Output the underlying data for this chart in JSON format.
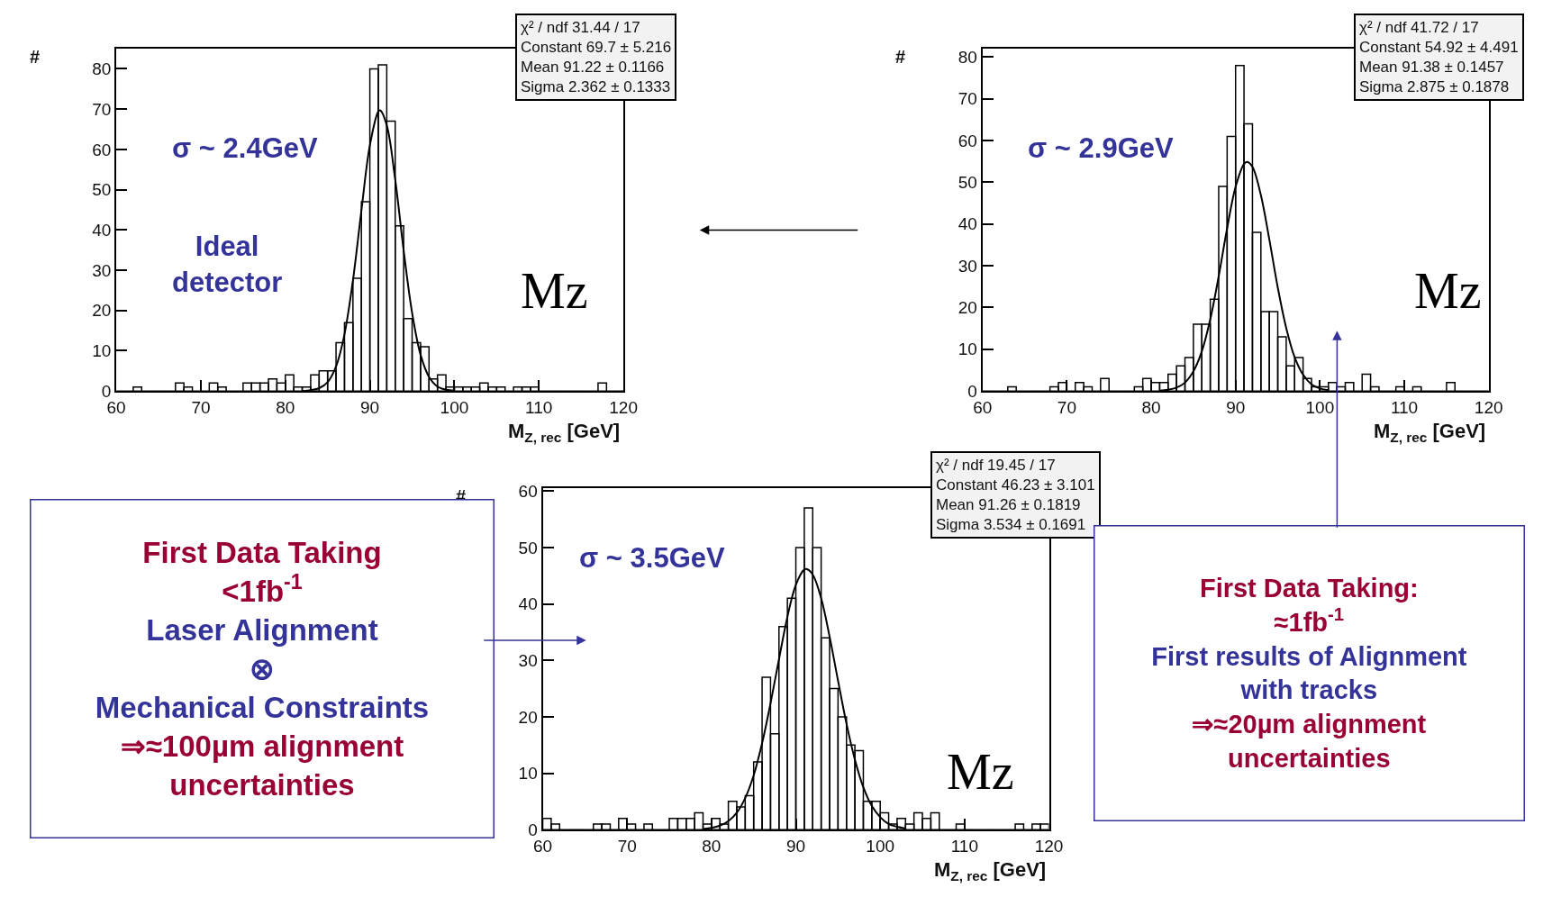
{
  "chart_data": [
    {
      "type": "histogram",
      "xlabel": "M$_{Z, rec}$ [GeV]",
      "ylabel": "#",
      "bins": [
        60,
        61,
        62,
        63,
        64,
        65,
        66,
        67,
        68,
        69,
        70,
        71,
        72,
        73,
        74,
        75,
        76,
        77,
        78,
        79,
        80,
        81,
        82,
        83,
        84,
        85,
        86,
        87,
        88,
        89,
        90,
        91,
        92,
        93,
        94,
        95,
        96,
        97,
        98,
        99,
        100,
        101,
        102,
        103,
        104,
        105,
        106,
        107,
        108,
        109,
        110,
        111,
        112,
        113,
        114,
        115,
        116,
        117,
        118,
        119,
        120
      ],
      "xlim": [
        60,
        120
      ],
      "ylim": [
        0,
        85
      ],
      "xticks": [
        60,
        70,
        80,
        90,
        100,
        110,
        120
      ],
      "yticks": [
        0,
        10,
        20,
        30,
        40,
        50,
        60,
        70,
        80
      ],
      "series": [
        {
          "color": "#000000",
          "values": [
            0,
            0,
            1,
            0,
            0,
            0,
            0,
            2,
            1,
            0,
            0,
            2,
            1,
            0,
            0,
            2,
            2,
            2,
            3,
            2,
            4,
            1,
            1,
            4,
            5,
            5,
            12,
            17,
            28,
            47,
            80,
            81,
            67,
            41,
            18,
            12,
            11,
            3,
            4,
            1,
            1,
            1,
            1,
            2,
            1,
            1,
            0,
            1,
            1,
            1,
            0,
            0,
            0,
            0,
            0,
            0,
            0,
            2,
            0,
            0
          ]
        },
        {
          "type": "line",
          "color": "#000000",
          "x": [
            82,
            83,
            84,
            85,
            86,
            87,
            88,
            89,
            90,
            91,
            91.22,
            92,
            93,
            94,
            95,
            96,
            97,
            98,
            99,
            100
          ],
          "values": [
            0.0,
            0.2,
            0.7,
            2.2,
            6.1,
            14.1,
            27.5,
            44.8,
            61.0,
            69.4,
            69.7,
            66.0,
            52.5,
            34.9,
            19.4,
            9.0,
            3.5,
            1.1,
            0.3,
            0.1
          ]
        }
      ],
      "annotations": [
        "χ² / ndf 31.44 / 17\nConstant 69.7 ± 5.216\nMean 91.22 ± 0.1166\nSigma 2.362 ± 0.1333",
        "σ ~ 2.4GeV",
        "Ideal\ndetector",
        "Mz"
      ]
    },
    {
      "type": "histogram",
      "xlabel": "M$_{Z, rec}$ [GeV]",
      "ylabel": "#",
      "bins": [
        60,
        61,
        62,
        63,
        64,
        65,
        66,
        67,
        68,
        69,
        70,
        71,
        72,
        73,
        74,
        75,
        76,
        77,
        78,
        79,
        80,
        81,
        82,
        83,
        84,
        85,
        86,
        87,
        88,
        89,
        90,
        91,
        92,
        93,
        94,
        95,
        96,
        97,
        98,
        99,
        100,
        101,
        102,
        103,
        104,
        105,
        106,
        107,
        108,
        109,
        110,
        111,
        112,
        113,
        114,
        115,
        116,
        117,
        118,
        119,
        120
      ],
      "xlim": [
        60,
        120
      ],
      "ylim": [
        0,
        82
      ],
      "xticks": [
        60,
        70,
        80,
        90,
        100,
        110,
        120
      ],
      "yticks": [
        0,
        10,
        20,
        30,
        40,
        50,
        60,
        70,
        80
      ],
      "series": [
        {
          "color": "#000000",
          "values": [
            0,
            0,
            0,
            1,
            0,
            0,
            0,
            0,
            1,
            2,
            0,
            2,
            1,
            0,
            3,
            0,
            0,
            0,
            1,
            3,
            2,
            2,
            4,
            6,
            8,
            16,
            16,
            22,
            49,
            61,
            78,
            64,
            38,
            19,
            19,
            13,
            6,
            8,
            3,
            1,
            1,
            2,
            1,
            2,
            0,
            4,
            1,
            0,
            0,
            1,
            0,
            1,
            0,
            0,
            0,
            2,
            0,
            0,
            0,
            0
          ]
        },
        {
          "type": "line",
          "color": "#000000",
          "x": [
            81,
            82,
            83,
            84,
            85,
            86,
            87,
            88,
            89,
            90,
            91,
            91.38,
            92,
            93,
            94,
            95,
            96,
            97,
            98,
            99,
            100,
            101
          ],
          "values": [
            0.1,
            0.3,
            0.8,
            2.0,
            4.7,
            9.5,
            17.2,
            27.5,
            39.0,
            48.9,
            54.4,
            54.9,
            53.7,
            46.9,
            36.3,
            24.8,
            15.1,
            8.1,
            3.9,
            1.6,
            0.6,
            0.2
          ]
        }
      ],
      "annotations": [
        "χ² / ndf 41.72 / 17\nConstant 54.92 ± 4.491\nMean 91.38 ± 0.1457\nSigma 2.875 ± 0.1878",
        "σ ~ 2.9GeV",
        "Mz"
      ]
    },
    {
      "type": "histogram",
      "xlabel": "M$_{Z, rec}$ [GeV]",
      "ylabel": "#",
      "bins": [
        60,
        61,
        62,
        63,
        64,
        65,
        66,
        67,
        68,
        69,
        70,
        71,
        72,
        73,
        74,
        75,
        76,
        77,
        78,
        79,
        80,
        81,
        82,
        83,
        84,
        85,
        86,
        87,
        88,
        89,
        90,
        91,
        92,
        93,
        94,
        95,
        96,
        97,
        98,
        99,
        100,
        101,
        102,
        103,
        104,
        105,
        106,
        107,
        108,
        109,
        110,
        111,
        112,
        113,
        114,
        115,
        116,
        117,
        118,
        119,
        120
      ],
      "xlim": [
        60,
        120
      ],
      "ylim": [
        0,
        60.5
      ],
      "xticks": [
        60,
        70,
        80,
        90,
        100,
        110,
        120
      ],
      "yticks": [
        0,
        10,
        20,
        30,
        40,
        50,
        60
      ],
      "series": [
        {
          "color": "#000000",
          "values": [
            2,
            1,
            0,
            0,
            0,
            0,
            1,
            1,
            0,
            2,
            1,
            0,
            1,
            0,
            0,
            2,
            2,
            2,
            3,
            1,
            2,
            1,
            5,
            4,
            6,
            12,
            27,
            17,
            36,
            41,
            50,
            57,
            50,
            34,
            25,
            20,
            15,
            14,
            5,
            5,
            3,
            1,
            2,
            1,
            3,
            2,
            3,
            0,
            0,
            1,
            0,
            0,
            0,
            0,
            0,
            0,
            1,
            0,
            1,
            1
          ]
        },
        {
          "type": "line",
          "color": "#000000",
          "x": [
            79,
            80,
            81,
            82,
            83,
            84,
            85,
            86,
            87,
            88,
            89,
            90,
            91,
            91.26,
            92,
            93,
            94,
            95,
            96,
            97,
            98,
            99,
            100,
            101,
            102,
            103
          ],
          "values": [
            0.1,
            0.3,
            0.7,
            1.5,
            3.0,
            5.6,
            9.6,
            15.3,
            22.4,
            30.2,
            37.7,
            43.4,
            46.1,
            46.2,
            45.2,
            41.0,
            34.2,
            26.4,
            18.8,
            12.4,
            7.5,
            4.2,
            2.2,
            1.0,
            0.5,
            0.2
          ]
        }
      ],
      "annotations": [
        "χ² / ndf 19.45 / 17\nConstant 46.23 ± 3.101\nMean 91.26 ± 0.1819\nSigma 3.534 ± 0.1691",
        "σ ~ 3.5GeV",
        "Mz",
        "First Data Taking\n<1fb$^{-1}$\nLaser Alignment\n⊗\nMechanical Constraints\n⇒≈100µm alignment\nuncertainties",
        "First Data Taking:\n≈1fb$^{-1}$\nFirst results of Alignment\nwith tracks\n⇒≈20µm alignment\nuncertainties"
      ]
    }
  ]
}
